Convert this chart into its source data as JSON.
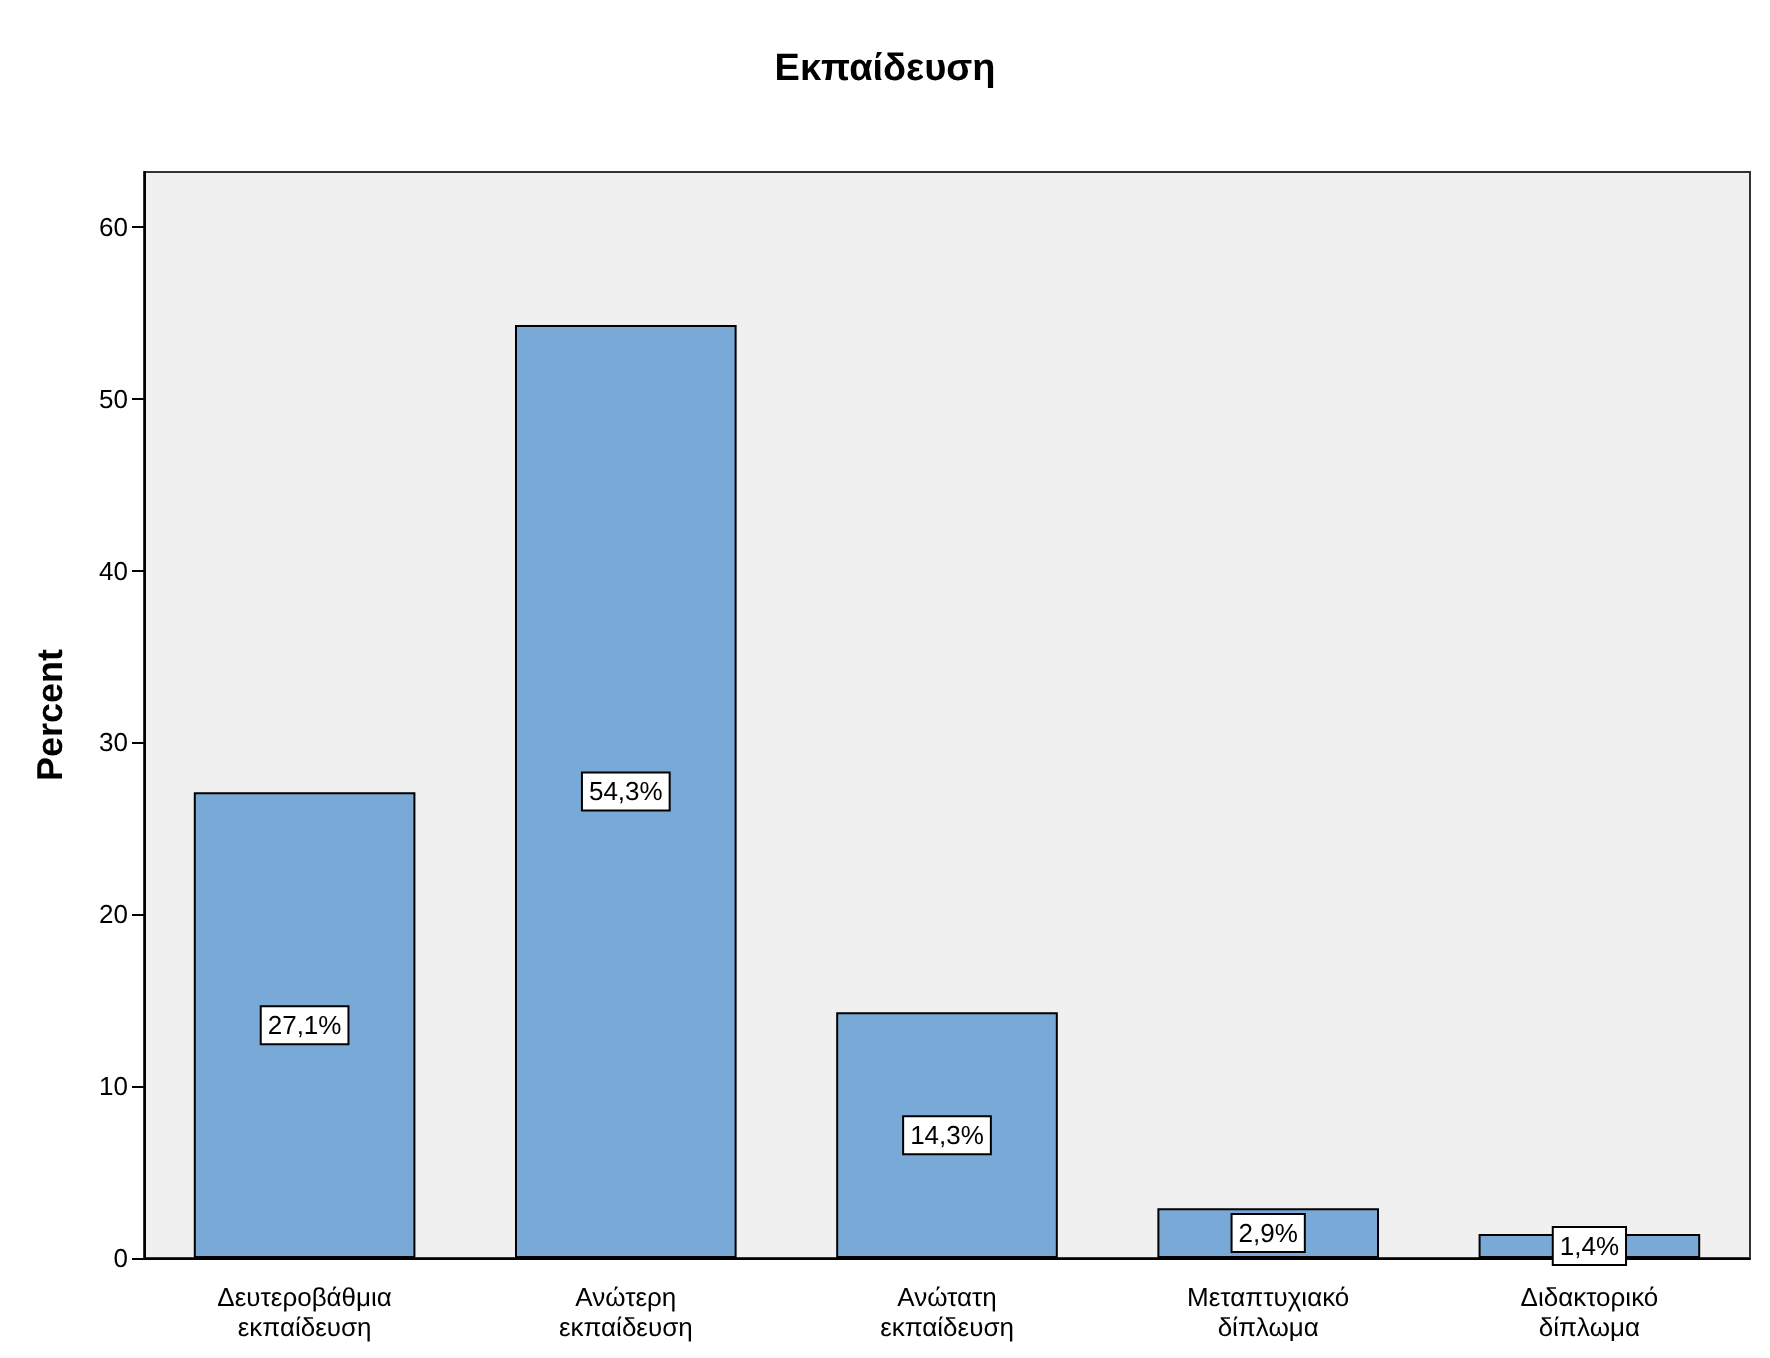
{
  "chart_data": {
    "type": "bar",
    "title": "Εκπαίδευση",
    "ylabel": "Percent",
    "categories": [
      "Δευτεροβάθμια εκπαίδευση",
      "Ανώτερη εκπαίδευση",
      "Ανώτατη εκπαίδευση",
      "Μεταπτυχιακό δίπλωμα",
      "Διδακτορικό δίπλωμα"
    ],
    "values": [
      27.1,
      54.3,
      14.3,
      2.9,
      1.4
    ],
    "value_labels": [
      "27,1%",
      "54,3%",
      "14,3%",
      "2,9%",
      "1,4%"
    ],
    "color": "#79a9d6",
    "ylim": [
      0,
      63.2
    ],
    "yticks": [
      0,
      10,
      20,
      30,
      40,
      50,
      60
    ]
  }
}
